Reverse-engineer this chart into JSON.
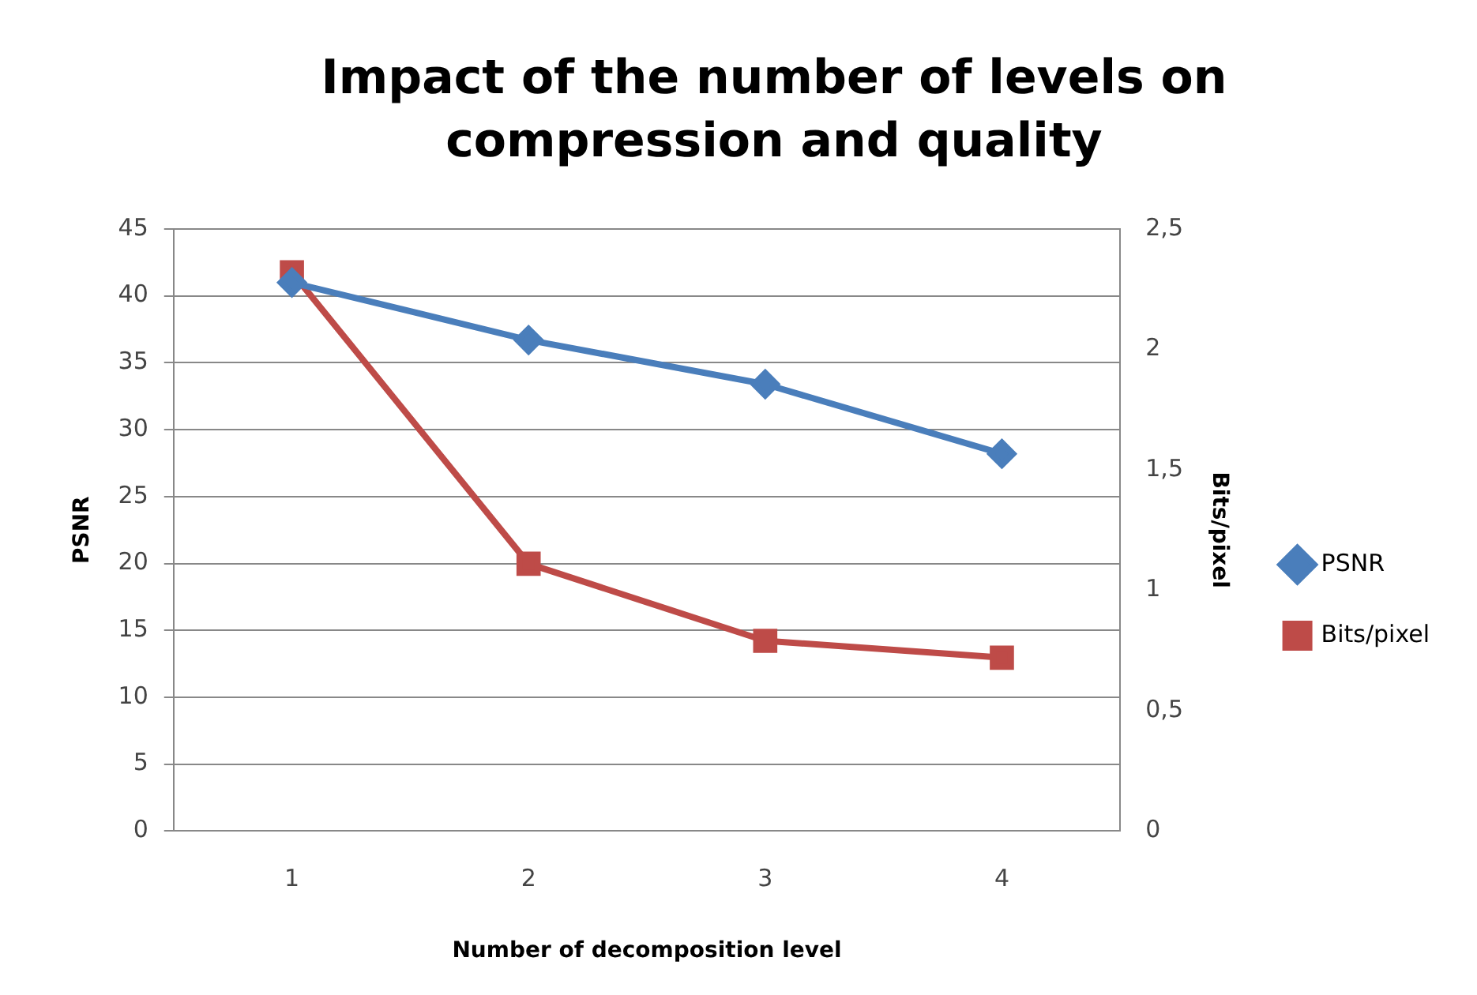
{
  "chart_data": {
    "type": "line",
    "title": "Impact of the number of levels on compression and quality",
    "xlabel": "Number of decomposition level",
    "ylabel": "PSNR",
    "y2label": "Bits/pixel",
    "categories": [
      "1",
      "2",
      "3",
      "4"
    ],
    "series": [
      {
        "name": "PSNR",
        "color": "#4a7ebb",
        "marker": "diamond",
        "values": [
          41.0,
          36.7,
          33.4,
          28.2
        ]
      },
      {
        "name": "Bits/pixel",
        "color": "#be4b48",
        "marker": "square",
        "axis": "y2",
        "values": [
          2.32,
          1.11,
          0.79,
          0.72
        ]
      }
    ],
    "ylim": [
      0,
      45
    ],
    "yticks": [
      0,
      5,
      10,
      15,
      20,
      25,
      30,
      35,
      40,
      45
    ],
    "y2lim": [
      0,
      2.5
    ],
    "y2ticks": [
      0,
      {
        "value": 0.5,
        "label": "0,5"
      },
      1,
      {
        "value": 1.5,
        "label": "1,5"
      },
      2,
      {
        "value": 2.5,
        "label": "2,5"
      }
    ],
    "grid": "y",
    "legend": "right"
  }
}
